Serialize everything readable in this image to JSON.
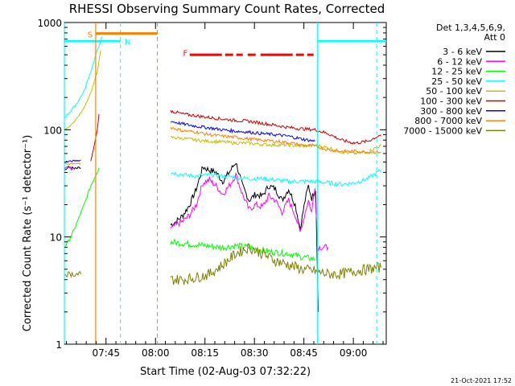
{
  "chart_data": {
    "type": "line",
    "title": "RHESSI Observing Summary Count Rates, Corrected",
    "xlabel": "Start Time (02-Aug-03 07:32:22)",
    "ylabel": "Corrected Count Rate (s⁻¹ detector⁻¹)",
    "yscale": "log",
    "ylim": [
      1,
      1000
    ],
    "xlim_minutes": [
      0,
      97.6
    ],
    "x_ticks": [
      {
        "label": "07:45",
        "minute": 12.63
      },
      {
        "label": "08:00",
        "minute": 27.63
      },
      {
        "label": "08:15",
        "minute": 42.63
      },
      {
        "label": "08:30",
        "minute": 57.63
      },
      {
        "label": "08:45",
        "minute": 72.63
      },
      {
        "label": "09:00",
        "minute": 87.63
      }
    ],
    "y_ticks": [
      {
        "label": "1",
        "value": 1
      },
      {
        "label": "10",
        "value": 10
      },
      {
        "label": "100",
        "value": 100
      },
      {
        "label": "1000",
        "value": 1000
      }
    ],
    "legend_header": [
      "Det 1,3,4,5,6,9,",
      "Att 0"
    ],
    "legend_position": "right",
    "timestamp": "21-Oct-2021 17:52",
    "flags": [
      {
        "label": "S",
        "color": "#ff8000"
      },
      {
        "label": "N",
        "color": "#00ffff"
      },
      {
        "label": "F",
        "color": "#ff0000"
      }
    ],
    "series": [
      {
        "name": "3 - 6 keV",
        "color": "#000000",
        "points": [
          [
            32.2,
            13
          ],
          [
            34,
            14
          ],
          [
            36,
            16
          ],
          [
            38,
            20
          ],
          [
            40,
            28
          ],
          [
            42,
            45
          ],
          [
            44,
            42
          ],
          [
            46,
            40
          ],
          [
            48,
            33
          ],
          [
            50,
            40
          ],
          [
            52,
            50
          ],
          [
            54,
            30
          ],
          [
            56,
            22
          ],
          [
            58,
            25
          ],
          [
            60,
            24
          ],
          [
            62,
            30
          ],
          [
            64,
            28
          ],
          [
            66,
            22
          ],
          [
            68,
            28
          ],
          [
            70,
            20
          ],
          [
            71.5,
            12
          ],
          [
            73,
            22
          ],
          [
            74,
            30
          ],
          [
            75,
            23
          ],
          [
            76.2,
            28
          ],
          [
            77,
            2
          ]
        ],
        "early": [
          [
            0,
            42
          ],
          [
            1.5,
            45
          ],
          [
            3,
            43
          ],
          [
            5,
            44
          ]
        ]
      },
      {
        "name": "6 - 12 keV",
        "color": "#ff00ff",
        "points": [
          [
            32.2,
            12
          ],
          [
            34,
            13
          ],
          [
            36,
            14
          ],
          [
            38,
            16
          ],
          [
            40,
            20
          ],
          [
            42,
            32
          ],
          [
            44,
            34
          ],
          [
            46,
            30
          ],
          [
            48,
            25
          ],
          [
            50,
            30
          ],
          [
            52,
            38
          ],
          [
            54,
            25
          ],
          [
            56,
            18
          ],
          [
            58,
            20
          ],
          [
            60,
            19
          ],
          [
            62,
            24
          ],
          [
            64,
            22
          ],
          [
            66,
            17
          ],
          [
            68,
            22
          ],
          [
            70,
            16
          ],
          [
            71.5,
            11
          ],
          [
            73,
            17
          ],
          [
            74,
            22
          ],
          [
            75,
            17
          ],
          [
            76,
            30
          ],
          [
            76.8,
            8
          ],
          [
            80,
            8
          ]
        ],
        "early": [
          [
            0,
            43
          ],
          [
            1.5,
            44
          ],
          [
            3,
            43
          ]
        ]
      },
      {
        "name": "12 - 25 keV",
        "color": "#00ff00",
        "points": [
          [
            32.2,
            9
          ],
          [
            36,
            8.7
          ],
          [
            40,
            8.5
          ],
          [
            44,
            8.2
          ],
          [
            48,
            8
          ],
          [
            52,
            8.3
          ],
          [
            56,
            8
          ],
          [
            60,
            7.5
          ],
          [
            64,
            7.2
          ],
          [
            68,
            7
          ],
          [
            72,
            6.5
          ],
          [
            76,
            6.2
          ]
        ],
        "early": [
          [
            0,
            8
          ],
          [
            2,
            10
          ],
          [
            4,
            14
          ],
          [
            6,
            20
          ],
          [
            8,
            30
          ],
          [
            10.5,
            44
          ]
        ]
      },
      {
        "name": "25 - 50 keV",
        "color": "#00ffff",
        "points": [
          [
            32.2,
            40
          ],
          [
            36,
            38
          ],
          [
            40,
            37
          ],
          [
            44,
            38
          ],
          [
            48,
            37
          ],
          [
            52,
            36
          ],
          [
            56,
            35
          ],
          [
            60,
            35
          ],
          [
            64,
            34
          ],
          [
            68,
            33
          ],
          [
            72,
            33
          ],
          [
            76,
            33
          ],
          [
            80,
            32
          ],
          [
            84,
            31
          ],
          [
            88,
            32
          ],
          [
            92,
            35
          ],
          [
            96,
            42
          ]
        ],
        "early": [
          [
            0,
            130
          ],
          [
            2,
            150
          ],
          [
            4,
            180
          ],
          [
            6,
            230
          ],
          [
            8,
            350
          ],
          [
            10,
            550
          ],
          [
            11.5,
            750
          ]
        ]
      },
      {
        "name": "50 - 100 keV",
        "color": "#c0c000",
        "points": [
          [
            32.2,
            85
          ],
          [
            36,
            83
          ],
          [
            40,
            80
          ],
          [
            44,
            78
          ],
          [
            48,
            77
          ],
          [
            52,
            75
          ],
          [
            56,
            75
          ],
          [
            60,
            73
          ],
          [
            64,
            72
          ],
          [
            68,
            72
          ],
          [
            72,
            70
          ],
          [
            76,
            72
          ],
          [
            80,
            68
          ],
          [
            84,
            62
          ],
          [
            88,
            60
          ],
          [
            92,
            62
          ],
          [
            96,
            72
          ]
        ],
        "early": [
          [
            0,
            100
          ],
          [
            2,
            110
          ],
          [
            4,
            130
          ],
          [
            6,
            160
          ],
          [
            8,
            220
          ],
          [
            10,
            350
          ],
          [
            11,
            550
          ]
        ]
      },
      {
        "name": "100 - 300 keV",
        "color": "#cc0000",
        "points": [
          [
            32.2,
            150
          ],
          [
            36,
            140
          ],
          [
            40,
            135
          ],
          [
            44,
            130
          ],
          [
            48,
            126
          ],
          [
            52,
            122
          ],
          [
            56,
            120
          ],
          [
            60,
            115
          ],
          [
            64,
            110
          ],
          [
            68,
            105
          ],
          [
            72,
            102
          ],
          [
            76,
            100
          ],
          [
            80,
            92
          ],
          [
            84,
            80
          ],
          [
            88,
            75
          ],
          [
            92,
            78
          ],
          [
            96,
            90
          ]
        ],
        "early": [
          [
            8,
            50
          ],
          [
            9,
            70
          ],
          [
            10,
            100
          ],
          [
            10.5,
            140
          ]
        ]
      },
      {
        "name": "300 - 800 keV",
        "color": "#0000ff",
        "points": [
          [
            32.2,
            120
          ],
          [
            36,
            113
          ],
          [
            40,
            108
          ],
          [
            44,
            104
          ],
          [
            48,
            100
          ],
          [
            52,
            97
          ],
          [
            56,
            95
          ],
          [
            60,
            92
          ],
          [
            64,
            90
          ],
          [
            68,
            87
          ],
          [
            72,
            82
          ],
          [
            76,
            78
          ]
        ],
        "early": [
          [
            0,
            50
          ],
          [
            5,
            52
          ]
        ]
      },
      {
        "name": "800 - 7000 keV",
        "color": "#ff8000",
        "points": [
          [
            32.2,
            105
          ],
          [
            36,
            98
          ],
          [
            40,
            95
          ],
          [
            44,
            90
          ],
          [
            48,
            87
          ],
          [
            52,
            85
          ],
          [
            56,
            82
          ],
          [
            60,
            80
          ],
          [
            64,
            78
          ],
          [
            68,
            76
          ],
          [
            72,
            72
          ],
          [
            76,
            70
          ],
          [
            80,
            65
          ],
          [
            84,
            63
          ],
          [
            88,
            63
          ],
          [
            92,
            62
          ],
          [
            96,
            62
          ]
        ],
        "early": [
          [
            0,
            48
          ],
          [
            5,
            48
          ]
        ]
      },
      {
        "name": "7000 - 15000 keV",
        "color": "#808000",
        "points": [
          [
            32.2,
            4
          ],
          [
            36,
            4
          ],
          [
            40,
            4.2
          ],
          [
            44,
            4.5
          ],
          [
            48,
            5.5
          ],
          [
            52,
            7
          ],
          [
            56,
            8
          ],
          [
            60,
            7
          ],
          [
            64,
            6
          ],
          [
            68,
            5.5
          ],
          [
            72,
            5
          ],
          [
            76,
            4.8
          ],
          [
            80,
            4.5
          ],
          [
            84,
            4.5
          ],
          [
            88,
            4.8
          ],
          [
            92,
            5
          ],
          [
            96,
            5.2
          ]
        ],
        "early": [
          [
            0,
            4.5
          ],
          [
            5,
            4.5
          ]
        ]
      }
    ]
  }
}
